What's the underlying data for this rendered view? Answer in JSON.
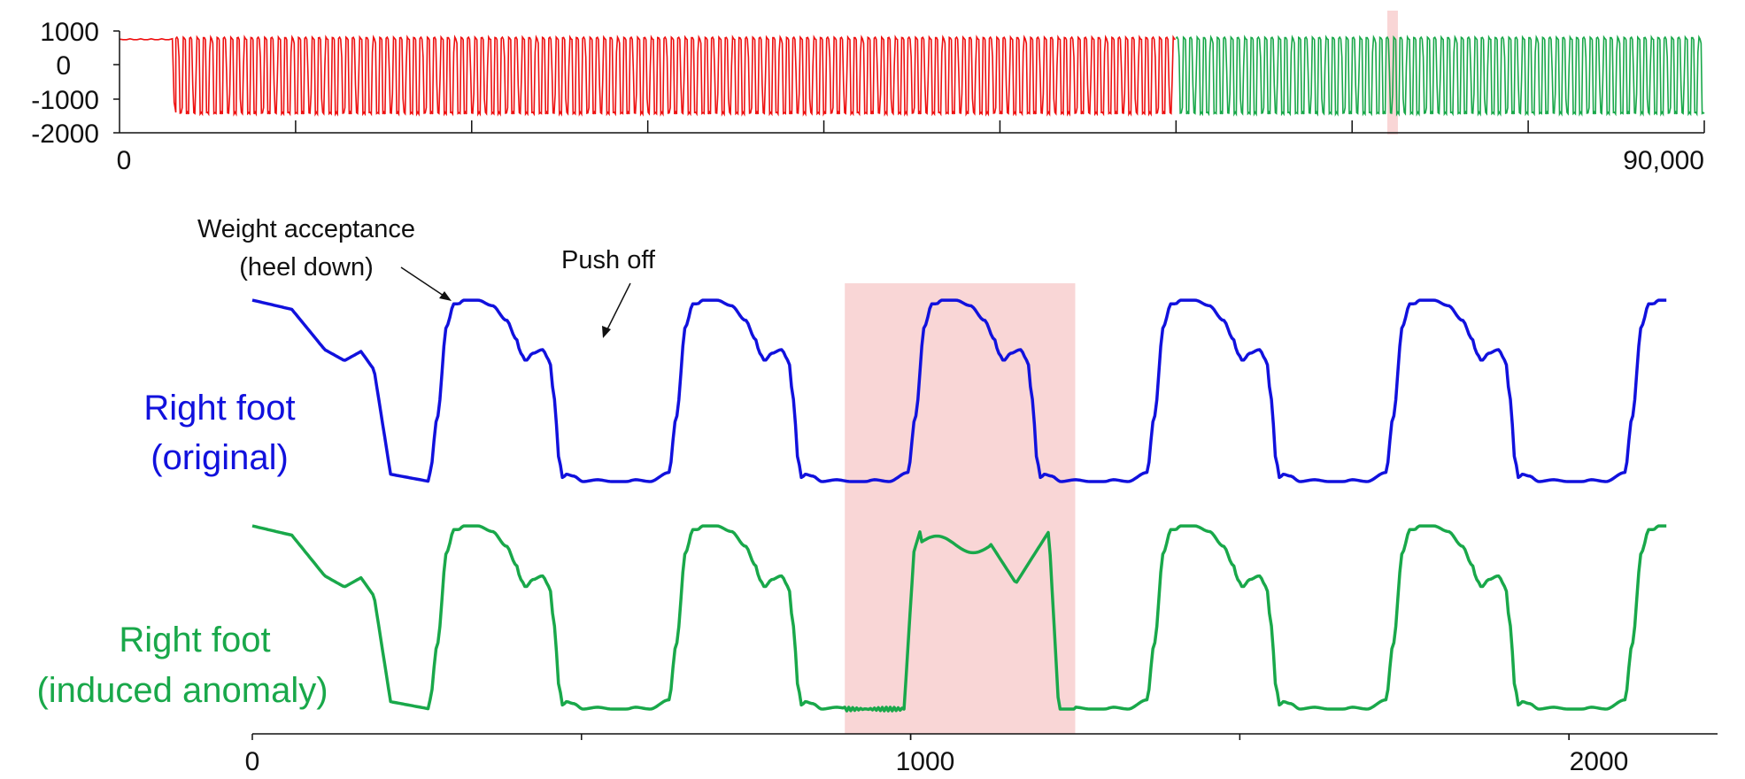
{
  "colors": {
    "train": "#ee1111",
    "test": "#19a84a",
    "original": "#1111dd",
    "anomaly": "#19a84a",
    "highlight": "#f9d6d6"
  },
  "chart_data": [
    {
      "type": "line",
      "ylim": [
        -2000,
        1000
      ],
      "xlim": [
        0,
        90000
      ],
      "y_ticks": [
        "1000",
        "0",
        "-1000",
        "-2000"
      ],
      "x_tick_labels": [
        "0",
        "90,000"
      ],
      "series": [
        {
          "values_summary": "initial flat level",
          "x": [
            0,
            3000
          ],
          "y": [
            750,
            750
          ]
        },
        {
          "values_summary": "periodic gait signal",
          "x_range": [
            3000,
            60000
          ],
          "y_range": [
            -1450,
            850
          ]
        },
        {
          "values_summary": "periodic gait signal",
          "x_range": [
            60000,
            90000
          ],
          "y_range": [
            -1450,
            850
          ]
        }
      ],
      "highlight_x": [
        72000,
        72600
      ]
    },
    {
      "type": "line",
      "xlim": [
        0,
        2180
      ],
      "x_tick_labels": [
        "0",
        "1000",
        "2000"
      ],
      "highlight_x": [
        900,
        1250
      ],
      "period": 363,
      "series": [
        {
          "name": "Right foot (original)",
          "label_lines": [
            "Right foot",
            "(original)"
          ]
        },
        {
          "name": "Right foot (induced anomaly)",
          "label_lines": [
            "Right foot",
            "(induced anomaly)"
          ]
        }
      ],
      "annotations": [
        {
          "text_lines": [
            "Weight acceptance",
            "(heel down)"
          ]
        },
        {
          "text_lines": [
            "Push off"
          ]
        }
      ]
    }
  ]
}
